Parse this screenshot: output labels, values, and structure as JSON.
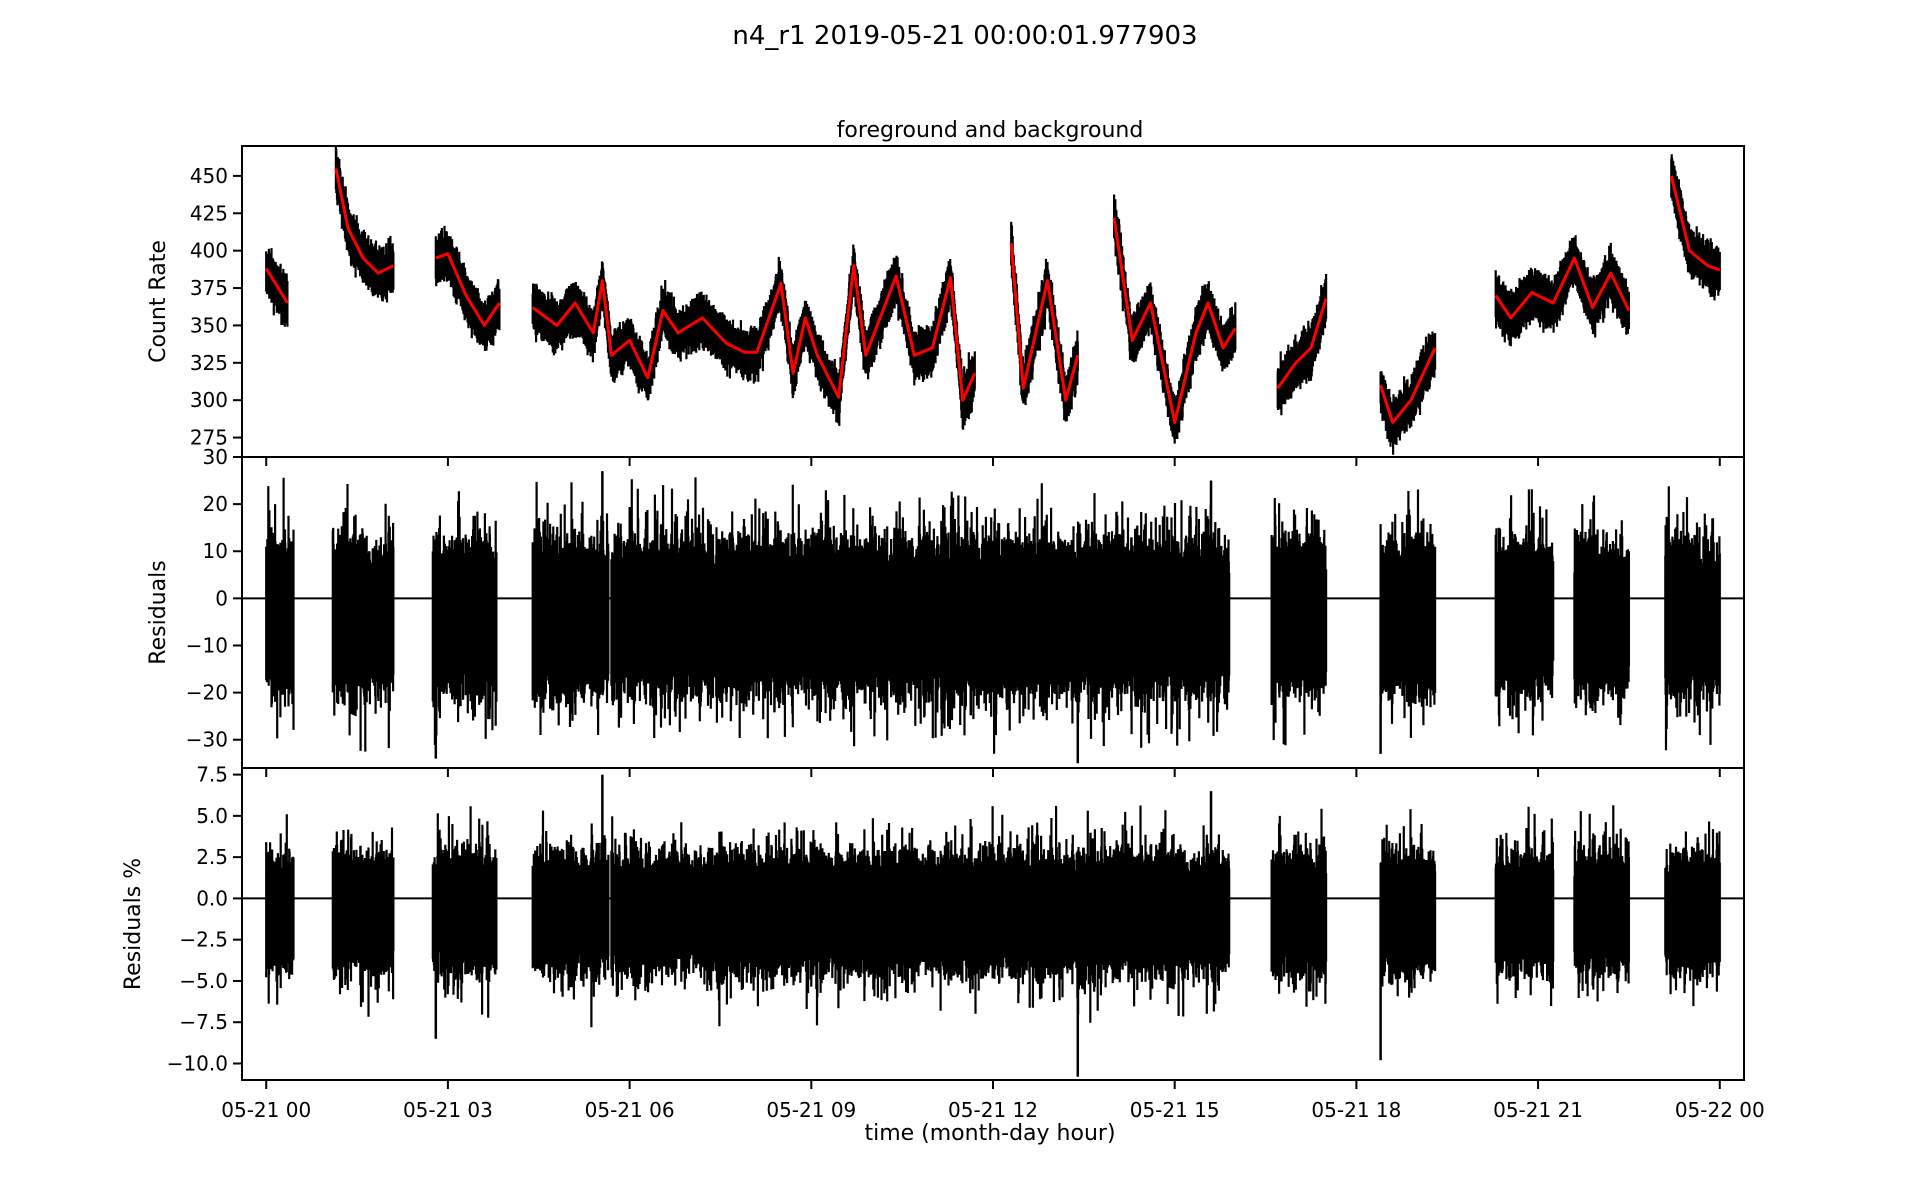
{
  "figure": {
    "suptitle": "n4_r1 2019-05-21 00:00:01.977903",
    "xlabel": "time (month-day hour)"
  },
  "chart_data": [
    {
      "type": "scatter",
      "title": "foreground and background",
      "ylabel": "Count Rate",
      "ylim": [
        262,
        470
      ],
      "yticks": [
        275,
        300,
        325,
        350,
        375,
        400,
        425,
        450
      ],
      "ytick_labels": [
        "275",
        "300",
        "325",
        "350",
        "375",
        "400",
        "425",
        "450"
      ],
      "xlim": [
        -0.4,
        24.4
      ],
      "series": [
        {
          "color": "#000000",
          "style": "dense scatter (measured count rate)",
          "x": [
            0.0,
            0.2,
            0.35,
            1.15,
            1.35,
            1.6,
            1.85,
            2.1,
            2.8,
            3.0,
            3.3,
            3.6,
            3.85,
            4.4,
            4.8,
            5.1,
            5.4,
            5.55,
            5.7,
            6.0,
            6.3,
            6.55,
            6.8,
            7.2,
            7.6,
            7.9,
            8.1,
            8.5,
            8.7,
            8.9,
            9.1,
            9.45,
            9.7,
            9.9,
            10.4,
            10.7,
            11.0,
            11.3,
            11.5,
            11.7,
            12.3,
            12.5,
            12.9,
            13.2,
            13.4,
            14.0,
            14.3,
            14.6,
            15.0,
            15.35,
            15.55,
            15.8,
            16.0,
            16.7,
            17.0,
            17.25,
            17.5,
            18.4,
            18.6,
            18.9,
            19.3,
            20.3,
            20.55,
            20.9,
            21.25,
            21.6,
            21.9,
            22.2,
            22.5,
            23.2,
            23.5,
            23.8,
            24.0
          ],
          "y": [
            388,
            375,
            365,
            455,
            415,
            395,
            385,
            390,
            395,
            398,
            370,
            350,
            365,
            362,
            350,
            365,
            345,
            380,
            330,
            340,
            315,
            360,
            345,
            355,
            338,
            332,
            332,
            378,
            318,
            355,
            330,
            302,
            390,
            330,
            383,
            330,
            335,
            382,
            300,
            318,
            405,
            308,
            380,
            300,
            330,
            422,
            340,
            365,
            285,
            345,
            365,
            335,
            348,
            308,
            325,
            335,
            368,
            310,
            285,
            300,
            335,
            370,
            355,
            372,
            365,
            395,
            362,
            385,
            360,
            450,
            400,
            390,
            387
          ]
        },
        {
          "color": "#ff0000",
          "style": "line (model fit)",
          "x": [
            0.0,
            0.2,
            0.35,
            1.15,
            1.35,
            1.6,
            1.85,
            2.1,
            2.8,
            3.0,
            3.3,
            3.6,
            3.85,
            4.4,
            4.8,
            5.1,
            5.4,
            5.55,
            5.7,
            6.0,
            6.3,
            6.55,
            6.8,
            7.2,
            7.6,
            7.9,
            8.1,
            8.5,
            8.7,
            8.9,
            9.1,
            9.45,
            9.7,
            9.9,
            10.4,
            10.7,
            11.0,
            11.3,
            11.5,
            11.7,
            12.3,
            12.5,
            12.9,
            13.2,
            13.4,
            14.0,
            14.3,
            14.6,
            15.0,
            15.35,
            15.55,
            15.8,
            16.0,
            16.7,
            17.0,
            17.25,
            17.5,
            18.4,
            18.6,
            18.9,
            19.3,
            20.3,
            20.55,
            20.9,
            21.25,
            21.6,
            21.9,
            22.2,
            22.5,
            23.2,
            23.5,
            23.8,
            24.0
          ],
          "y": [
            388,
            375,
            365,
            455,
            415,
            395,
            385,
            390,
            395,
            398,
            370,
            350,
            365,
            362,
            350,
            365,
            345,
            380,
            330,
            340,
            315,
            360,
            345,
            355,
            338,
            332,
            332,
            378,
            318,
            355,
            330,
            302,
            390,
            330,
            383,
            330,
            335,
            382,
            300,
            318,
            405,
            308,
            380,
            300,
            330,
            422,
            340,
            365,
            285,
            345,
            365,
            335,
            348,
            308,
            325,
            335,
            368,
            310,
            285,
            300,
            335,
            370,
            355,
            372,
            365,
            395,
            362,
            385,
            360,
            450,
            400,
            390,
            387
          ]
        }
      ]
    },
    {
      "type": "scatter",
      "ylabel": "Residuals",
      "ylim": [
        -36,
        30
      ],
      "yticks": [
        -30,
        -20,
        -10,
        0,
        10,
        20,
        30
      ],
      "ytick_labels": [
        "−30",
        "−20",
        "−10",
        "0",
        "10",
        "20",
        "30"
      ],
      "xlim": [
        -0.4,
        24.4
      ],
      "zero_line": true,
      "series": [
        {
          "color": "#000000",
          "style": "dense vertical scatter of residuals around zero",
          "segments": [
            [
              0.0,
              0.45
            ],
            [
              1.1,
              2.1
            ],
            [
              2.75,
              3.8
            ],
            [
              4.4,
              5.65
            ],
            [
              5.7,
              15.9
            ],
            [
              16.6,
              17.5
            ],
            [
              18.4,
              19.3
            ],
            [
              20.3,
              21.25
            ],
            [
              21.6,
              22.5
            ],
            [
              23.1,
              24.0
            ]
          ],
          "ymin": -35,
          "ymax": 27
        }
      ]
    },
    {
      "type": "scatter",
      "ylabel": "Residuals %",
      "ylim": [
        -11.0,
        7.9
      ],
      "yticks": [
        -10.0,
        -7.5,
        -5.0,
        -2.5,
        0.0,
        2.5,
        5.0,
        7.5
      ],
      "ytick_labels": [
        "−10.0",
        "−7.5",
        "−5.0",
        "−2.5",
        "0.0",
        "2.5",
        "5.0",
        "7.5"
      ],
      "xlim": [
        -0.4,
        24.4
      ],
      "xticks": [
        0,
        3,
        6,
        9,
        12,
        15,
        18,
        21,
        24
      ],
      "xtick_labels": [
        "05-21 00",
        "05-21 03",
        "05-21 06",
        "05-21 09",
        "05-21 12",
        "05-21 15",
        "05-21 18",
        "05-21 21",
        "05-22 00"
      ],
      "zero_line": true,
      "series": [
        {
          "color": "#000000",
          "style": "dense vertical scatter of percent residuals around zero",
          "segments": [
            [
              0.0,
              0.45
            ],
            [
              1.1,
              2.1
            ],
            [
              2.75,
              3.8
            ],
            [
              4.4,
              5.65
            ],
            [
              5.7,
              15.9
            ],
            [
              16.6,
              17.5
            ],
            [
              18.4,
              19.3
            ],
            [
              20.3,
              21.25
            ],
            [
              21.6,
              22.5
            ],
            [
              23.1,
              24.0
            ]
          ],
          "ymin": -10.8,
          "ymax": 7.5
        }
      ]
    }
  ]
}
